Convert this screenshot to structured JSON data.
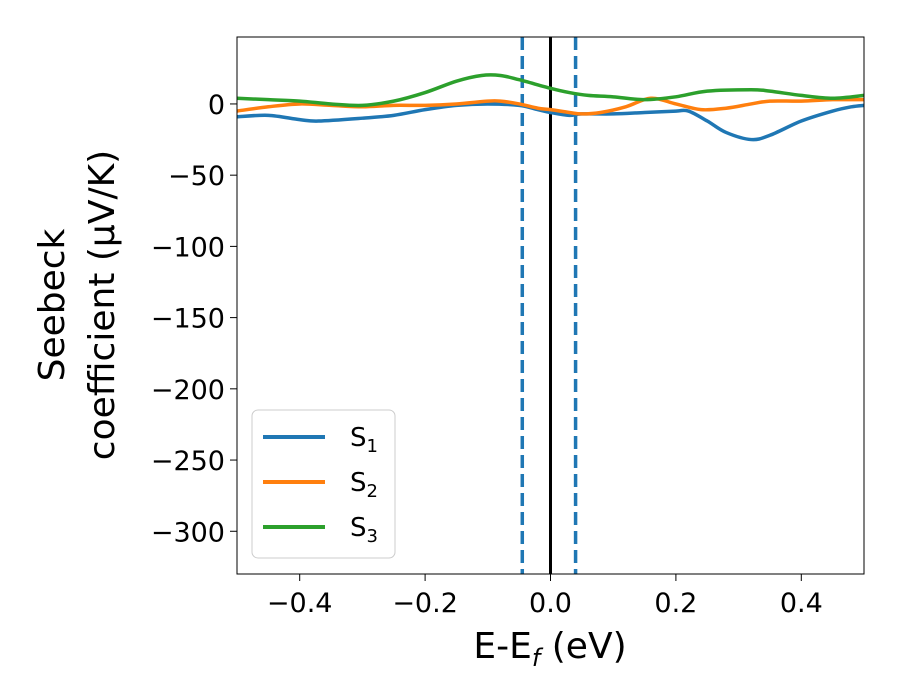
{
  "chart_data": {
    "type": "line",
    "xlabel_main": "E-E",
    "xlabel_sub": "f",
    "xlabel_unit": " (eV)",
    "ylabel_line1": "Seebeck",
    "ylabel_line2": "coefficient  (μV/K)",
    "xlim": [
      -0.5,
      0.5
    ],
    "ylim": [
      -330,
      47
    ],
    "xticks": [
      -0.4,
      -0.2,
      0.0,
      0.2,
      0.4
    ],
    "xtick_labels": [
      "−0.4",
      "−0.2",
      "0.0",
      "0.2",
      "0.4"
    ],
    "yticks": [
      0,
      -50,
      -100,
      -150,
      -200,
      -250,
      -300
    ],
    "ytick_labels": [
      "0",
      "−50",
      "−100",
      "−150",
      "−200",
      "−250",
      "−300"
    ],
    "grid": false,
    "legend_position": "lower-left",
    "vlines": [
      {
        "x": -0.045,
        "style": "dashed",
        "color": "#1f77b4"
      },
      {
        "x": 0.0,
        "style": "solid",
        "color": "#000000"
      },
      {
        "x": 0.04,
        "style": "dashed",
        "color": "#1f77b4"
      }
    ],
    "series": [
      {
        "name": "S",
        "sub": "1",
        "color": "#1f77b4",
        "points": [
          [
            -0.5,
            -9
          ],
          [
            -0.45,
            -8
          ],
          [
            -0.4,
            -11
          ],
          [
            -0.37,
            -12
          ],
          [
            -0.3,
            -10
          ],
          [
            -0.25,
            -8
          ],
          [
            -0.2,
            -4
          ],
          [
            -0.15,
            -1
          ],
          [
            -0.1,
            0
          ],
          [
            -0.05,
            -1
          ],
          [
            -0.02,
            -4
          ],
          [
            0.0,
            -6
          ],
          [
            0.03,
            -8
          ],
          [
            0.05,
            -7
          ],
          [
            0.1,
            -7
          ],
          [
            0.15,
            -6
          ],
          [
            0.2,
            -5
          ],
          [
            0.22,
            -5
          ],
          [
            0.25,
            -12
          ],
          [
            0.28,
            -20
          ],
          [
            0.32,
            -25
          ],
          [
            0.35,
            -22
          ],
          [
            0.4,
            -12
          ],
          [
            0.45,
            -5
          ],
          [
            0.48,
            -2
          ],
          [
            0.5,
            -1
          ]
        ]
      },
      {
        "name": "S",
        "sub": "2",
        "color": "#ff7f0e",
        "points": [
          [
            -0.5,
            -5
          ],
          [
            -0.45,
            -2
          ],
          [
            -0.4,
            0
          ],
          [
            -0.35,
            -1
          ],
          [
            -0.3,
            -2
          ],
          [
            -0.25,
            -1
          ],
          [
            -0.2,
            -1
          ],
          [
            -0.15,
            0
          ],
          [
            -0.1,
            2
          ],
          [
            -0.08,
            2
          ],
          [
            -0.05,
            0
          ],
          [
            -0.02,
            -3
          ],
          [
            0.0,
            -4
          ],
          [
            0.03,
            -6
          ],
          [
            0.05,
            -7
          ],
          [
            0.08,
            -6
          ],
          [
            0.12,
            -2
          ],
          [
            0.16,
            4
          ],
          [
            0.2,
            0
          ],
          [
            0.24,
            -4
          ],
          [
            0.28,
            -3
          ],
          [
            0.32,
            0
          ],
          [
            0.35,
            2
          ],
          [
            0.4,
            2
          ],
          [
            0.45,
            3
          ],
          [
            0.5,
            3
          ]
        ]
      },
      {
        "name": "S",
        "sub": "3",
        "color": "#2ca02c",
        "points": [
          [
            -0.5,
            4
          ],
          [
            -0.45,
            3
          ],
          [
            -0.4,
            2
          ],
          [
            -0.35,
            0
          ],
          [
            -0.3,
            -1
          ],
          [
            -0.25,
            2
          ],
          [
            -0.2,
            8
          ],
          [
            -0.15,
            16
          ],
          [
            -0.11,
            20
          ],
          [
            -0.08,
            20
          ],
          [
            -0.05,
            17
          ],
          [
            0.0,
            11
          ],
          [
            0.03,
            8
          ],
          [
            0.06,
            6
          ],
          [
            0.1,
            5
          ],
          [
            0.15,
            3
          ],
          [
            0.2,
            5
          ],
          [
            0.25,
            9
          ],
          [
            0.32,
            10
          ],
          [
            0.35,
            9
          ],
          [
            0.4,
            6
          ],
          [
            0.45,
            4
          ],
          [
            0.5,
            6
          ]
        ]
      }
    ]
  }
}
